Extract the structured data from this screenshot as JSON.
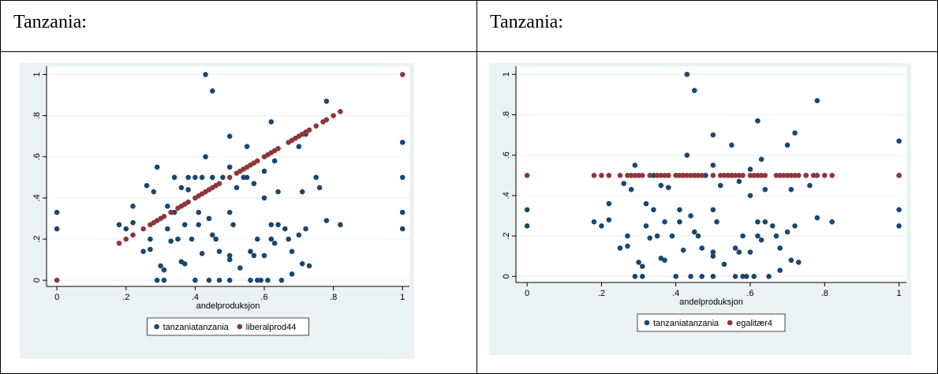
{
  "table": {
    "headers": [
      "Tanzania:",
      "Tanzania:"
    ]
  },
  "chart_data": [
    {
      "type": "scatter",
      "xlabel": "andelproduksjon",
      "xlim": [
        -0.03,
        1.02
      ],
      "ylim": [
        -0.03,
        1.04
      ],
      "xticks": [
        0,
        {
          "value": 0.2,
          "label": ".2"
        },
        {
          "value": 0.4,
          "label": ".4"
        },
        {
          "value": 0.6,
          "label": ".6"
        },
        {
          "value": 0.8,
          "label": ".8"
        },
        1
      ],
      "yticks": [
        0,
        {
          "value": 0.2,
          "label": ".2"
        },
        {
          "value": 0.4,
          "label": ".4"
        },
        {
          "value": 0.6,
          "label": ".6"
        },
        {
          "value": 0.8,
          "label": ".8"
        },
        1
      ],
      "grid": true,
      "series": [
        {
          "name": "tanzaniatanzania",
          "color": "#1a476f",
          "x": [
            0,
            0,
            0.18,
            0.2,
            0.22,
            0.22,
            0.25,
            0.26,
            0.27,
            0.27,
            0.28,
            0.29,
            0.29,
            0.3,
            0.31,
            0.31,
            0.32,
            0.32,
            0.33,
            0.34,
            0.34,
            0.35,
            0.36,
            0.36,
            0.37,
            0.37,
            0.38,
            0.38,
            0.39,
            0.4,
            0.4,
            0.41,
            0.41,
            0.42,
            0.42,
            0.43,
            0.43,
            0.44,
            0.44,
            0.45,
            0.45,
            0.45,
            0.46,
            0.47,
            0.47,
            0.48,
            0.5,
            0.5,
            0.5,
            0.5,
            0.5,
            0.5,
            0.51,
            0.52,
            0.53,
            0.54,
            0.55,
            0.55,
            0.56,
            0.56,
            0.57,
            0.57,
            0.58,
            0.58,
            0.59,
            0.6,
            0.6,
            0.6,
            0.61,
            0.62,
            0.62,
            0.62,
            0.63,
            0.63,
            0.64,
            0.64,
            0.65,
            0.66,
            0.67,
            0.68,
            0.68,
            0.7,
            0.7,
            0.71,
            0.71,
            0.72,
            0.72,
            0.73,
            0.75,
            0.76,
            0.78,
            0.78,
            0.82,
            1,
            1,
            1,
            1
          ],
          "values": [
            0.33,
            0.25,
            0.27,
            0.25,
            0.36,
            0.28,
            0.14,
            0.46,
            0.2,
            0.15,
            0.43,
            0.55,
            0,
            0.07,
            0.05,
            0,
            0.36,
            0.25,
            0.19,
            0.5,
            0.33,
            0.2,
            0.45,
            0.09,
            0.08,
            0.27,
            0.5,
            0.44,
            0.2,
            0.5,
            0,
            0.33,
            0.27,
            0.5,
            0.13,
            1,
            0.6,
            0.3,
            0,
            0.92,
            0.5,
            0.22,
            0.2,
            0,
            0.14,
            0.5,
            0.7,
            0.55,
            0.33,
            0.12,
            0.1,
            0,
            0.27,
            0.45,
            0.06,
            0.5,
            0.65,
            0.5,
            0.14,
            0,
            0.47,
            0.12,
            0.2,
            0,
            0,
            0.53,
            0.4,
            0.12,
            0,
            0.77,
            0.27,
            0.2,
            0.58,
            0.18,
            0.43,
            0.27,
            0,
            0.25,
            0.2,
            0.03,
            0.14,
            0.65,
            0.22,
            0.08,
            0.43,
            0.71,
            0.25,
            0.07,
            0.5,
            0.45,
            0.87,
            0.29,
            0.27,
            0.67,
            0.5,
            0.33,
            0.25
          ]
        },
        {
          "name": "liberalprod44",
          "color": "#90353b",
          "x": [
            0,
            0.18,
            0.2,
            0.22,
            0.25,
            0.27,
            0.28,
            0.29,
            0.3,
            0.31,
            0.33,
            0.35,
            0.36,
            0.37,
            0.38,
            0.4,
            0.41,
            0.42,
            0.43,
            0.44,
            0.45,
            0.46,
            0.47,
            0.5,
            0.52,
            0.53,
            0.54,
            0.55,
            0.56,
            0.57,
            0.58,
            0.6,
            0.61,
            0.62,
            0.63,
            0.64,
            0.67,
            0.68,
            0.69,
            0.7,
            0.71,
            0.72,
            0.73,
            0.75,
            0.77,
            0.78,
            0.8,
            0.82,
            1
          ],
          "values": [
            0,
            0.18,
            0.2,
            0.22,
            0.25,
            0.27,
            0.28,
            0.29,
            0.3,
            0.31,
            0.33,
            0.35,
            0.36,
            0.37,
            0.38,
            0.4,
            0.41,
            0.42,
            0.43,
            0.44,
            0.45,
            0.46,
            0.47,
            0.5,
            0.52,
            0.53,
            0.54,
            0.55,
            0.56,
            0.57,
            0.58,
            0.6,
            0.61,
            0.62,
            0.63,
            0.64,
            0.67,
            0.68,
            0.69,
            0.7,
            0.71,
            0.72,
            0.73,
            0.75,
            0.77,
            0.78,
            0.8,
            0.82,
            1
          ]
        }
      ]
    },
    {
      "type": "scatter",
      "xlabel": "andelproduksjon",
      "xlim": [
        -0.03,
        1.02
      ],
      "ylim": [
        -0.03,
        1.04
      ],
      "xticks": [
        0,
        {
          "value": 0.2,
          "label": ".2"
        },
        {
          "value": 0.4,
          "label": ".4"
        },
        {
          "value": 0.6,
          "label": ".6"
        },
        {
          "value": 0.8,
          "label": ".8"
        },
        1
      ],
      "yticks": [
        0,
        {
          "value": 0.2,
          "label": ".2"
        },
        {
          "value": 0.4,
          "label": ".4"
        },
        {
          "value": 0.6,
          "label": ".6"
        },
        {
          "value": 0.8,
          "label": ".8"
        },
        1
      ],
      "grid": true,
      "series": [
        {
          "name": "tanzaniatanzania",
          "color": "#1a476f",
          "x": [
            0,
            0,
            0.18,
            0.2,
            0.22,
            0.22,
            0.25,
            0.26,
            0.27,
            0.27,
            0.28,
            0.29,
            0.29,
            0.3,
            0.31,
            0.31,
            0.32,
            0.32,
            0.33,
            0.34,
            0.34,
            0.35,
            0.36,
            0.36,
            0.37,
            0.37,
            0.38,
            0.38,
            0.39,
            0.4,
            0.4,
            0.41,
            0.41,
            0.42,
            0.42,
            0.43,
            0.43,
            0.44,
            0.44,
            0.45,
            0.45,
            0.45,
            0.46,
            0.47,
            0.47,
            0.48,
            0.5,
            0.5,
            0.5,
            0.5,
            0.5,
            0.5,
            0.51,
            0.52,
            0.53,
            0.54,
            0.55,
            0.55,
            0.56,
            0.56,
            0.57,
            0.57,
            0.58,
            0.58,
            0.59,
            0.6,
            0.6,
            0.6,
            0.61,
            0.62,
            0.62,
            0.62,
            0.63,
            0.63,
            0.64,
            0.64,
            0.65,
            0.66,
            0.67,
            0.68,
            0.68,
            0.7,
            0.7,
            0.71,
            0.71,
            0.72,
            0.72,
            0.73,
            0.75,
            0.76,
            0.78,
            0.78,
            0.82,
            1,
            1,
            1,
            1
          ],
          "values": [
            0.33,
            0.25,
            0.27,
            0.25,
            0.36,
            0.28,
            0.14,
            0.46,
            0.2,
            0.15,
            0.43,
            0.55,
            0,
            0.07,
            0.05,
            0,
            0.36,
            0.25,
            0.19,
            0.5,
            0.33,
            0.2,
            0.45,
            0.09,
            0.08,
            0.27,
            0.5,
            0.44,
            0.2,
            0.5,
            0,
            0.33,
            0.27,
            0.5,
            0.13,
            1,
            0.6,
            0.3,
            0,
            0.92,
            0.5,
            0.22,
            0.2,
            0,
            0.14,
            0.5,
            0.7,
            0.55,
            0.33,
            0.12,
            0.1,
            0,
            0.27,
            0.45,
            0.06,
            0.5,
            0.65,
            0.5,
            0.14,
            0,
            0.47,
            0.12,
            0.2,
            0,
            0,
            0.53,
            0.4,
            0.12,
            0,
            0.77,
            0.27,
            0.2,
            0.58,
            0.18,
            0.43,
            0.27,
            0,
            0.25,
            0.2,
            0.03,
            0.14,
            0.65,
            0.22,
            0.08,
            0.43,
            0.71,
            0.25,
            0.07,
            0.5,
            0.45,
            0.87,
            0.29,
            0.27,
            0.67,
            0.5,
            0.33,
            0.25
          ]
        },
        {
          "name": "egalitær4",
          "color": "#90353b",
          "x": [
            0,
            0.18,
            0.2,
            0.22,
            0.25,
            0.27,
            0.28,
            0.29,
            0.3,
            0.31,
            0.33,
            0.35,
            0.36,
            0.37,
            0.38,
            0.4,
            0.41,
            0.42,
            0.43,
            0.44,
            0.45,
            0.46,
            0.47,
            0.5,
            0.52,
            0.53,
            0.54,
            0.55,
            0.56,
            0.57,
            0.58,
            0.6,
            0.61,
            0.62,
            0.63,
            0.64,
            0.67,
            0.68,
            0.69,
            0.7,
            0.71,
            0.72,
            0.73,
            0.75,
            0.77,
            0.78,
            0.8,
            0.82,
            1
          ],
          "values": [
            0.5,
            0.5,
            0.5,
            0.5,
            0.5,
            0.5,
            0.5,
            0.5,
            0.5,
            0.5,
            0.5,
            0.5,
            0.5,
            0.5,
            0.5,
            0.5,
            0.5,
            0.5,
            0.5,
            0.5,
            0.5,
            0.5,
            0.5,
            0.5,
            0.5,
            0.5,
            0.5,
            0.5,
            0.5,
            0.5,
            0.5,
            0.5,
            0.5,
            0.5,
            0.5,
            0.5,
            0.5,
            0.5,
            0.5,
            0.5,
            0.5,
            0.5,
            0.5,
            0.5,
            0.5,
            0.5,
            0.5,
            0.5,
            0.5
          ]
        }
      ]
    }
  ]
}
